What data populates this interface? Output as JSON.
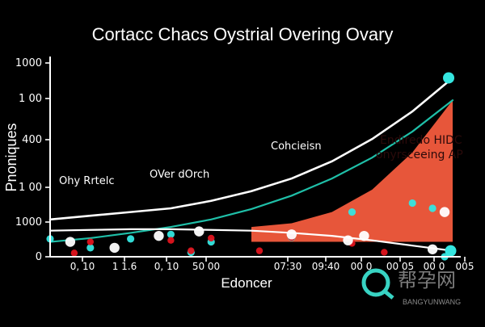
{
  "chart_data": {
    "type": "line",
    "title": "Cortacc Chacs Oystrial Overing Ovary",
    "xlabel": "Edoncer",
    "ylabel": "Pnoniques",
    "x_tick_labels": [
      "0, 10",
      "1 1.6",
      "0, 10",
      "50 00",
      "07:30",
      "09:40",
      "00 0",
      "00 05",
      "00 0",
      "005"
    ],
    "y_tick_labels": [
      "1000",
      "1 00",
      "400",
      "1 00",
      "1000",
      "0"
    ],
    "annotations": [
      "Cohcieisn",
      "Ohy Rrtelc",
      "OVer dOrch",
      "Endiredo HIDC",
      "onyrsceeing AP"
    ],
    "colors": {
      "main_line": "#ffffff",
      "teal_line": "#1fbfa8",
      "area_fill": "#f05a3c",
      "teal_marker": "#35e6e0",
      "red_marker": "#e0141e",
      "white_marker": "#ffffff"
    },
    "series": [
      {
        "x": [
          0,
          1,
          2,
          3,
          4,
          5,
          6,
          7,
          8,
          9,
          10
        ],
        "y": [
          50,
          55,
          60,
          65,
          75,
          88,
          105,
          128,
          158,
          195,
          240
        ]
      },
      {
        "x": [
          0,
          1,
          2,
          3,
          4,
          5,
          6,
          7,
          8,
          9,
          10
        ],
        "y": [
          20,
          25,
          32,
          40,
          50,
          64,
          82,
          105,
          133,
          168,
          210
        ]
      },
      {
        "x": [
          0,
          1,
          2,
          3,
          4,
          5,
          6,
          7,
          8,
          9,
          10
        ],
        "y": [
          35,
          36,
          37,
          37,
          36,
          35,
          32,
          28,
          22,
          15,
          8
        ]
      },
      {
        "x": [
          5,
          6,
          7,
          8,
          9,
          10
        ],
        "y": [
          40,
          45,
          60,
          90,
          140,
          210
        ]
      }
    ],
    "markers": {
      "teal": [
        [
          0,
          24
        ],
        [
          2,
          24
        ],
        [
          4,
          20
        ],
        [
          6,
          26
        ],
        [
          7.5,
          60
        ],
        [
          9,
          72
        ],
        [
          9.5,
          65
        ],
        [
          1,
          12
        ],
        [
          3,
          30
        ],
        [
          9.8,
          0
        ],
        [
          3.5,
          6
        ]
      ],
      "red": [
        [
          0.6,
          5
        ],
        [
          1,
          20
        ],
        [
          3,
          22
        ],
        [
          4,
          25
        ],
        [
          6,
          26
        ],
        [
          7.5,
          18
        ],
        [
          8.3,
          6
        ],
        [
          3.5,
          8
        ],
        [
          5.2,
          8
        ]
      ],
      "white": [
        [
          0.5,
          20
        ],
        [
          1.6,
          12
        ],
        [
          2.7,
          28
        ],
        [
          3.7,
          34
        ],
        [
          6,
          30
        ],
        [
          7.4,
          22
        ],
        [
          7.8,
          28
        ],
        [
          9.8,
          60
        ],
        [
          9.5,
          10
        ]
      ]
    },
    "ylim": [
      0,
      260
    ],
    "xlim": [
      0,
      10
    ],
    "grid": false,
    "legend": "none"
  },
  "watermark": {
    "cn_text": "帮孕网",
    "en_text": "BANGYUNWANG"
  }
}
